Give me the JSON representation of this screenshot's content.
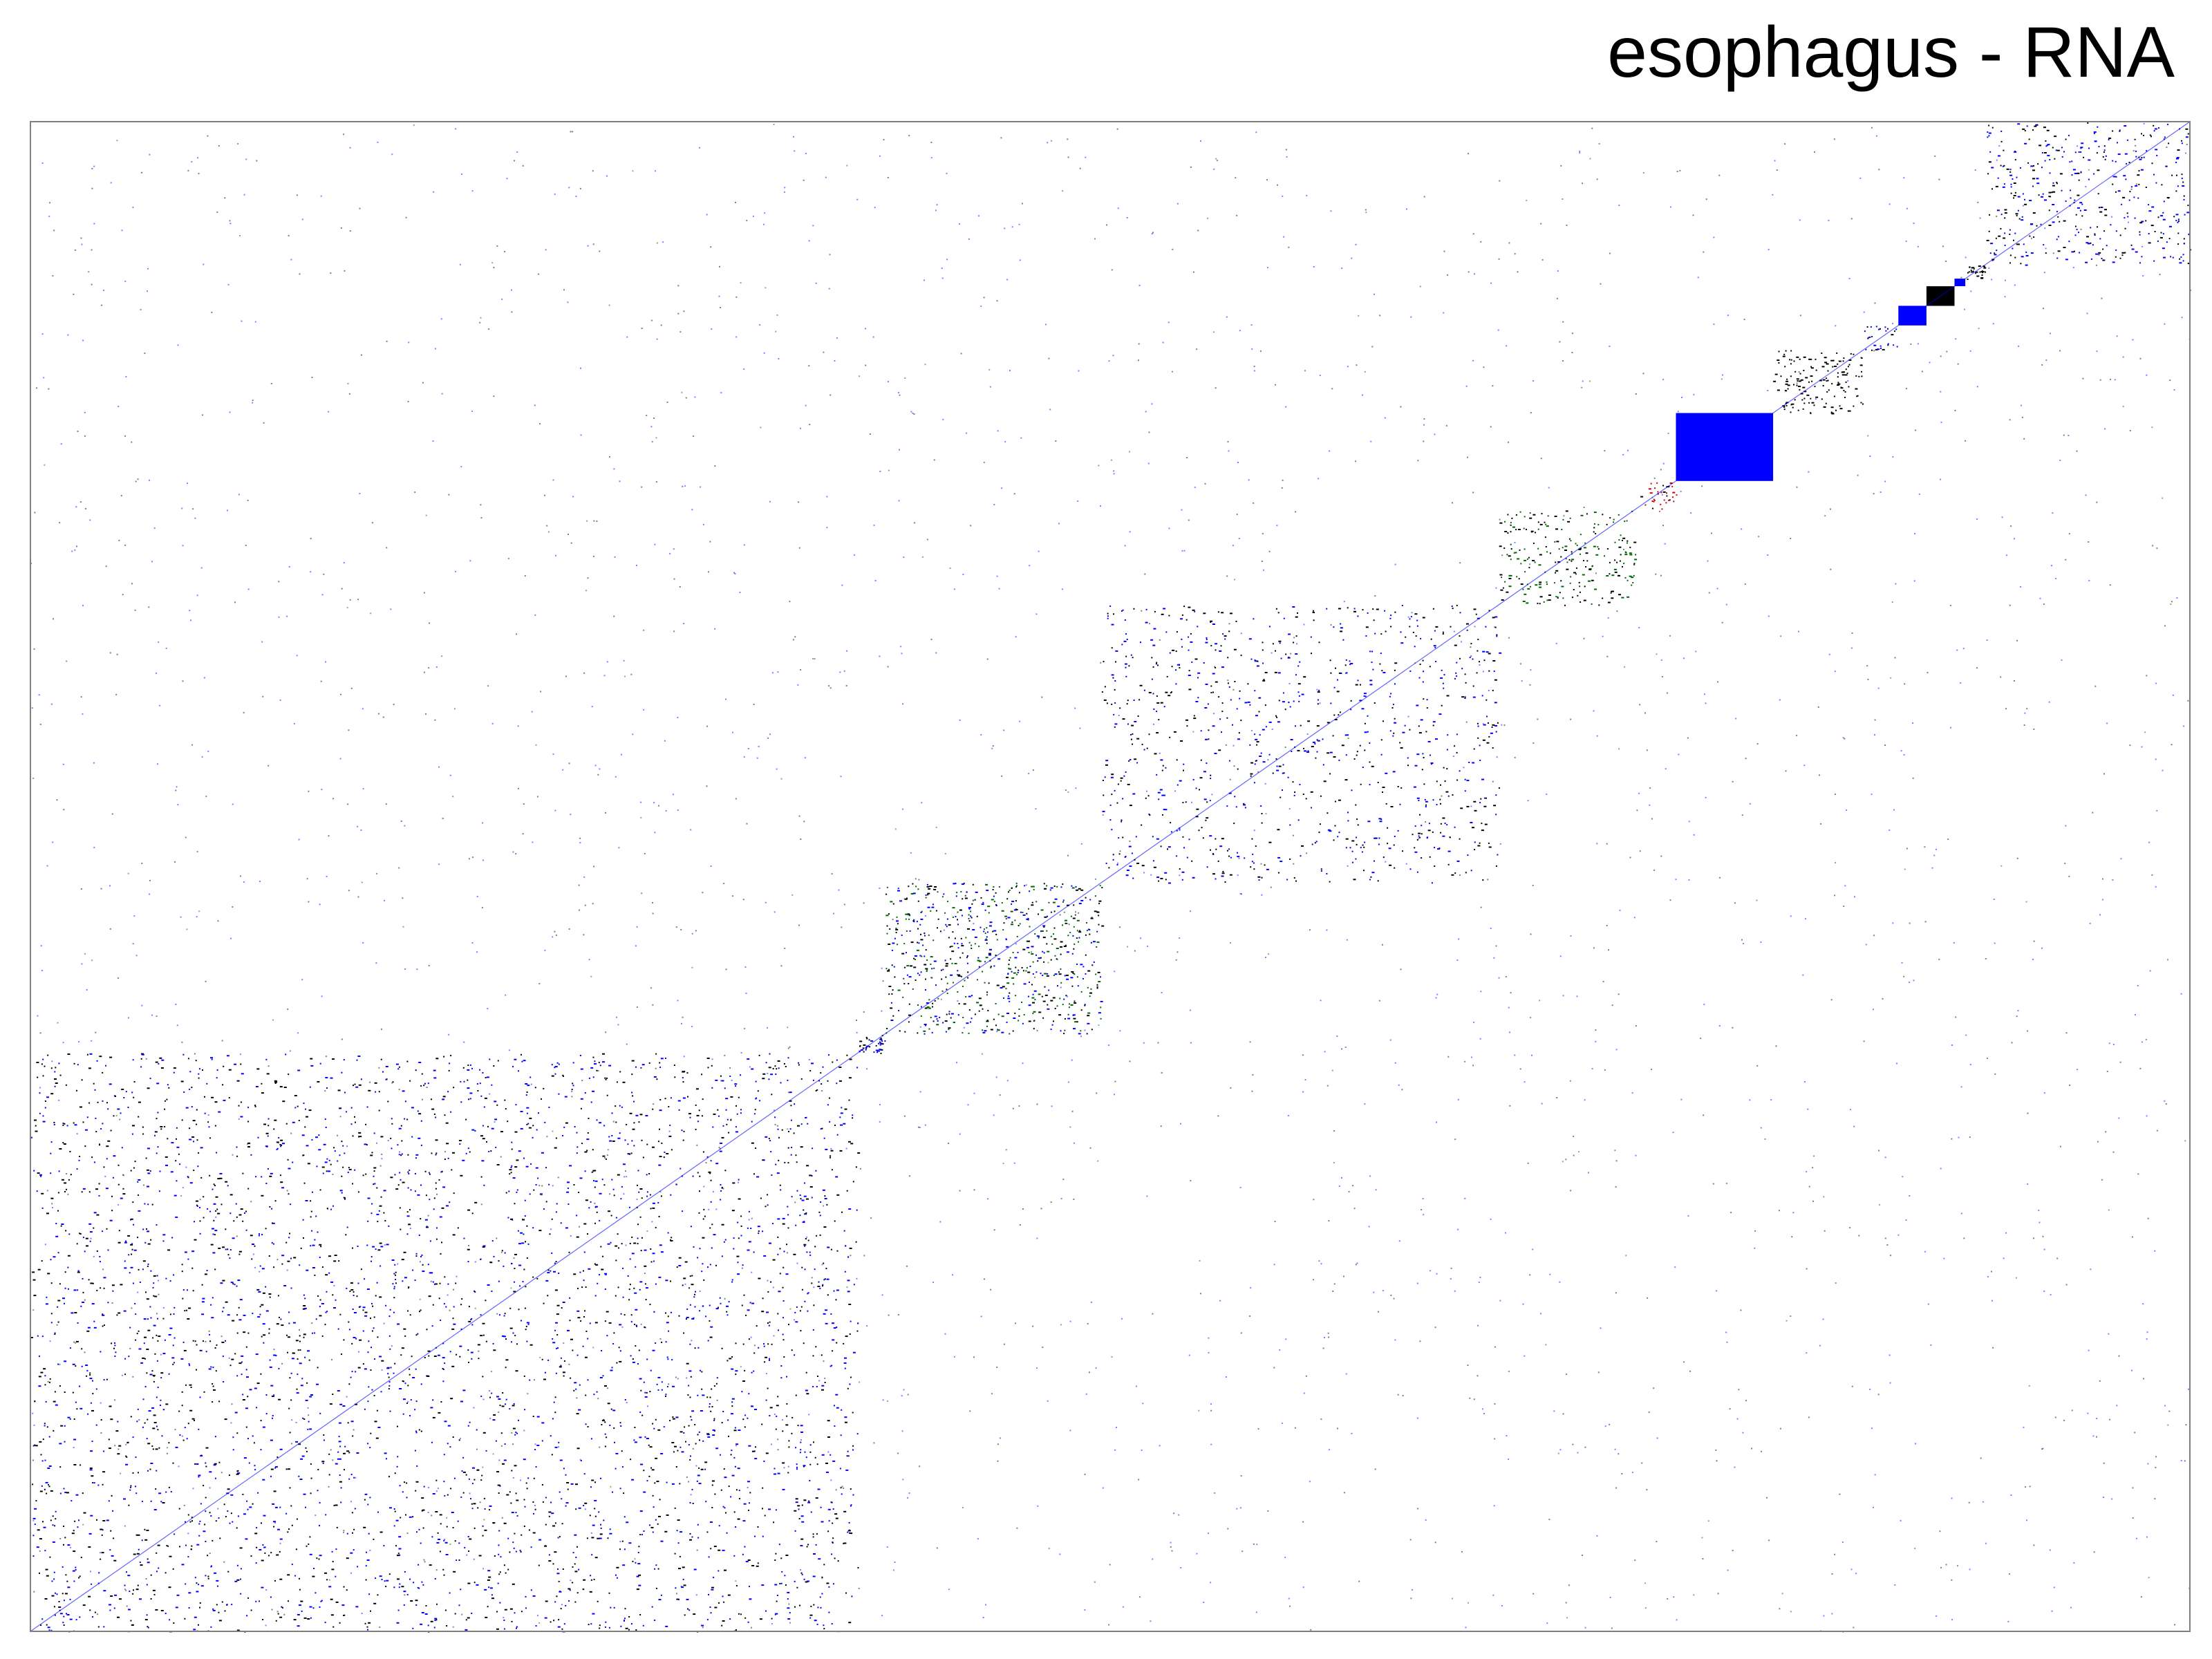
{
  "chart_data": {
    "type": "heatmap",
    "title": "esophagus - RNA",
    "xlabel": "",
    "ylabel": "",
    "matrix_size": 1000,
    "xlim": [
      0,
      1000
    ],
    "ylim": [
      0,
      1000
    ],
    "grid": false,
    "legend": "none",
    "colors": {
      "black": "#000000",
      "blue": "#0000ff",
      "green": "#006400",
      "red": "#cc0000",
      "frame": "#808080"
    },
    "diagonal_blocks": [
      {
        "start": 0,
        "end": 383,
        "density": 0.22,
        "colors": [
          "blue",
          "black"
        ]
      },
      {
        "start": 383,
        "end": 396,
        "density": 0.85,
        "colors": [
          "black",
          "blue"
        ]
      },
      {
        "start": 396,
        "end": 496,
        "density": 0.55,
        "colors": [
          "green",
          "blue",
          "black"
        ]
      },
      {
        "start": 496,
        "end": 680,
        "density": 0.22,
        "colors": [
          "black",
          "blue"
        ]
      },
      {
        "start": 680,
        "end": 743,
        "density": 0.45,
        "colors": [
          "green",
          "black"
        ]
      },
      {
        "start": 743,
        "end": 762,
        "density": 0.3,
        "colors": [
          "red",
          "black"
        ]
      },
      {
        "start": 762,
        "end": 807,
        "density": 1.0,
        "colors": [
          "blue"
        ]
      },
      {
        "start": 807,
        "end": 849,
        "density": 0.6,
        "colors": [
          "black"
        ]
      },
      {
        "start": 849,
        "end": 865,
        "density": 0.25,
        "colors": [
          "blue",
          "black"
        ]
      },
      {
        "start": 865,
        "end": 878,
        "density": 0.95,
        "colors": [
          "blue"
        ]
      },
      {
        "start": 878,
        "end": 891,
        "density": 1.0,
        "colors": [
          "black"
        ]
      },
      {
        "start": 891,
        "end": 896,
        "density": 1.0,
        "colors": [
          "blue"
        ]
      },
      {
        "start": 896,
        "end": 905,
        "density": 0.8,
        "colors": [
          "black"
        ]
      },
      {
        "start": 905,
        "end": 1000,
        "density": 0.35,
        "colors": [
          "blue",
          "black"
        ]
      }
    ]
  }
}
